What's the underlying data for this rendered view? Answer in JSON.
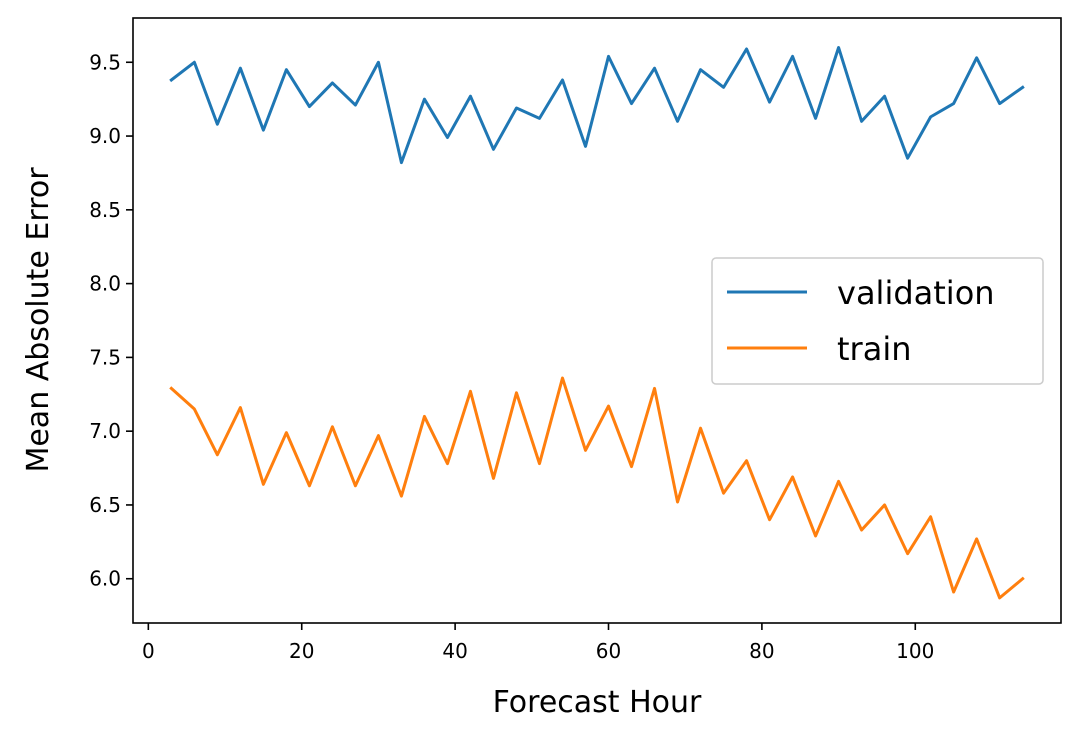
{
  "chart_data": {
    "type": "line",
    "title": "",
    "xlabel": "Forecast Hour",
    "ylabel": "Mean Absolute Error",
    "xlim": [
      -2,
      119
    ],
    "ylim": [
      5.7,
      9.8
    ],
    "xticks": [
      0,
      20,
      40,
      60,
      80,
      100
    ],
    "yticks": [
      6.0,
      6.5,
      7.0,
      7.5,
      8.0,
      8.5,
      9.0,
      9.5
    ],
    "ytick_labels": [
      "6.0",
      "6.5",
      "7.0",
      "7.5",
      "8.0",
      "8.5",
      "9.0",
      "9.5"
    ],
    "grid": false,
    "legend_position": "center-right",
    "x": [
      3,
      6,
      9,
      12,
      15,
      18,
      21,
      24,
      27,
      30,
      33,
      36,
      39,
      42,
      45,
      48,
      51,
      54,
      57,
      60,
      63,
      66,
      69,
      72,
      75,
      78,
      81,
      84,
      87,
      90,
      93,
      96,
      99,
      102,
      105,
      108,
      111,
      114
    ],
    "series": [
      {
        "name": "validation",
        "color": "#1f77b4",
        "values": [
          9.38,
          9.5,
          9.08,
          9.46,
          9.04,
          9.45,
          9.2,
          9.36,
          9.21,
          9.5,
          8.82,
          9.25,
          8.99,
          9.27,
          8.91,
          9.19,
          9.12,
          9.38,
          8.93,
          9.54,
          9.22,
          9.46,
          9.1,
          9.45,
          9.33,
          9.59,
          9.23,
          9.54,
          9.12,
          9.6,
          9.1,
          9.27,
          8.85,
          9.13,
          9.22,
          9.53,
          9.22,
          9.33
        ]
      },
      {
        "name": "train",
        "color": "#ff7f0e",
        "values": [
          7.29,
          7.15,
          6.84,
          7.16,
          6.64,
          6.99,
          6.63,
          7.03,
          6.63,
          6.97,
          6.56,
          7.1,
          6.78,
          7.27,
          6.68,
          7.26,
          6.78,
          7.36,
          6.87,
          7.17,
          6.76,
          7.29,
          6.52,
          7.02,
          6.58,
          6.8,
          6.4,
          6.69,
          6.29,
          6.66,
          6.33,
          6.5,
          6.17,
          6.42,
          5.91,
          6.27,
          5.87,
          6.0
        ]
      }
    ]
  }
}
